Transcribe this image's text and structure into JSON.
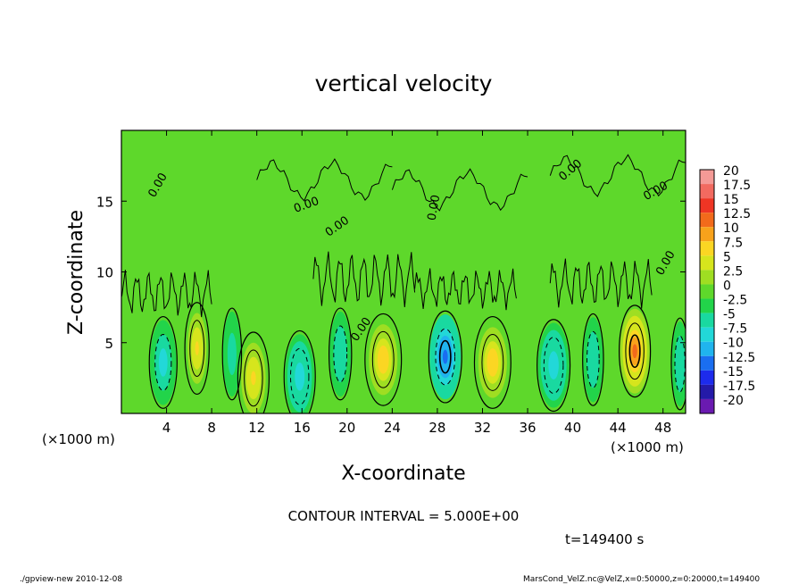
{
  "chart_data": {
    "type": "heatmap",
    "title": "vertical velocity",
    "xlabel": "X-coordinate",
    "ylabel": "Z-coordinate",
    "x_unit_left": "(×1000 m)",
    "x_unit_right": "(×1000 m)",
    "xlim": [
      0,
      50
    ],
    "ylim": [
      0,
      20
    ],
    "x_ticks": [
      4,
      8,
      12,
      16,
      20,
      24,
      28,
      32,
      36,
      40,
      44,
      48
    ],
    "y_ticks": [
      5,
      10,
      15
    ],
    "contour_interval_text": "CONTOUR INTERVAL = 5.000E+00",
    "time_text": "t=149400 s",
    "footer_left": "./gpview-new  2010-12-08",
    "footer_right": "MarsCond_VelZ.nc@VelZ,x=0:50000,z=0:20000,t=149400",
    "contour_zero_label": "0.00",
    "colorbar": {
      "levels": [
        20,
        17.5,
        15,
        12.5,
        10,
        7.5,
        5,
        2.5,
        0,
        -2.5,
        -5,
        -7.5,
        -10,
        -12.5,
        -15,
        -17.5,
        -20
      ],
      "colors": [
        "#f49a96",
        "#f26a60",
        "#ee3524",
        "#f26a1b",
        "#f8a21b",
        "#fbd623",
        "#d6e51d",
        "#9fde22",
        "#5ed82b",
        "#22d44a",
        "#19d9a0",
        "#22d8d8",
        "#20b4ee",
        "#1a6ef0",
        "#1d2bec",
        "#241aa8",
        "#6a1ab0"
      ]
    },
    "cells": [
      {
        "x": 3.7,
        "z": 3.6,
        "w": 0.8,
        "sign": -1,
        "peak": -6
      },
      {
        "x": 6.7,
        "z": 4.6,
        "w": 0.7,
        "sign": 1,
        "peak": 8
      },
      {
        "x": 9.8,
        "z": 4.2,
        "w": 0.55,
        "sign": -1,
        "peak": -4
      },
      {
        "x": 11.7,
        "z": 2.5,
        "w": 0.9,
        "sign": 1,
        "peak": 8
      },
      {
        "x": 15.8,
        "z": 2.6,
        "w": 0.9,
        "sign": -1,
        "peak": -7
      },
      {
        "x": 19.4,
        "z": 4.2,
        "w": 0.65,
        "sign": -1,
        "peak": -5
      },
      {
        "x": 23.2,
        "z": 3.8,
        "w": 1.05,
        "sign": 1,
        "peak": 9
      },
      {
        "x": 28.7,
        "z": 4.0,
        "w": 0.95,
        "sign": -1,
        "peak": -11
      },
      {
        "x": 32.9,
        "z": 3.6,
        "w": 1.05,
        "sign": 1,
        "peak": 9
      },
      {
        "x": 38.3,
        "z": 3.4,
        "w": 0.95,
        "sign": -1,
        "peak": -7
      },
      {
        "x": 41.8,
        "z": 3.8,
        "w": 0.6,
        "sign": -1,
        "peak": -5
      },
      {
        "x": 45.5,
        "z": 4.4,
        "w": 0.9,
        "sign": 1,
        "peak": 13
      },
      {
        "x": 49.5,
        "z": 3.5,
        "w": 0.5,
        "sign": -1,
        "peak": -5
      }
    ]
  }
}
